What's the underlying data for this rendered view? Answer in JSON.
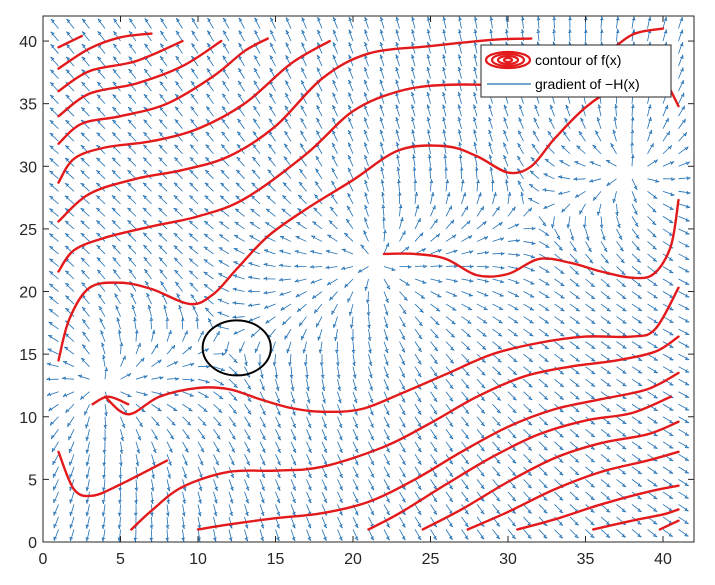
{
  "chart_data": {
    "type": "line",
    "title": "",
    "xlabel": "",
    "ylabel": "",
    "xlim": [
      0,
      42
    ],
    "ylim": [
      0,
      42
    ],
    "xticks": [
      0,
      5,
      10,
      15,
      20,
      25,
      30,
      35,
      40
    ],
    "yticks": [
      0,
      5,
      10,
      15,
      20,
      25,
      30,
      35,
      40
    ],
    "grid": false,
    "legend_location": "top-right",
    "colors": {
      "contour": "#e31a1c",
      "gradient": "#1f6fb4",
      "circle": "#000000",
      "axes": "#262626"
    },
    "series": [
      {
        "name": "contour of  f(x)",
        "kind": "contour",
        "lines": [
          [
            [
              1,
              7.2
            ],
            [
              2,
              4.2
            ],
            [
              3.2,
              3.7
            ],
            [
              5,
              4.6
            ],
            [
              8,
              6.5
            ]
          ],
          [
            [
              5.7,
              1
            ],
            [
              7,
              2.5
            ],
            [
              9,
              4.4
            ],
            [
              12,
              5.6
            ],
            [
              15,
              5.7
            ],
            [
              18,
              6
            ],
            [
              22,
              7.6
            ],
            [
              25,
              9.5
            ],
            [
              28,
              11.6
            ],
            [
              31,
              13.2
            ],
            [
              34,
              14
            ],
            [
              37,
              14.5
            ],
            [
              39.5,
              15.2
            ],
            [
              41,
              16.4
            ]
          ],
          [
            [
              1,
              14.5
            ],
            [
              1.7,
              17.8
            ],
            [
              3,
              20.3
            ],
            [
              5,
              20.7
            ],
            [
              7,
              20.2
            ],
            [
              9.5,
              19
            ],
            [
              11,
              19.8
            ],
            [
              12.5,
              21.8
            ],
            [
              14.5,
              24.4
            ],
            [
              17,
              26.6
            ],
            [
              20,
              28.9
            ],
            [
              23,
              31.3
            ],
            [
              26,
              31.6
            ],
            [
              28,
              30.8
            ],
            [
              30,
              29.5
            ],
            [
              31.5,
              30
            ],
            [
              33,
              32.2
            ],
            [
              35,
              34.7
            ],
            [
              37,
              36.3
            ],
            [
              39,
              37
            ],
            [
              40,
              37
            ],
            [
              41,
              34.8
            ]
          ],
          [
            [
              1,
              21.6
            ],
            [
              2,
              23.3
            ],
            [
              4,
              24.3
            ],
            [
              7,
              25.2
            ],
            [
              10,
              26
            ],
            [
              13,
              27.4
            ],
            [
              17,
              31
            ],
            [
              20,
              34.4
            ],
            [
              23,
              36
            ],
            [
              26,
              36.5
            ],
            [
              30,
              36.4
            ],
            [
              32,
              35.8
            ],
            [
              34,
              36.8
            ],
            [
              36,
              38.6
            ],
            [
              38,
              40.5
            ],
            [
              40,
              41
            ]
          ],
          [
            [
              1,
              25.6
            ],
            [
              3,
              27.8
            ],
            [
              6,
              29
            ],
            [
              9,
              29.7
            ],
            [
              12,
              30.8
            ],
            [
              15,
              33.2
            ],
            [
              18,
              37
            ],
            [
              21,
              39
            ],
            [
              25,
              39.6
            ],
            [
              29,
              40.1
            ],
            [
              31.5,
              40.2
            ]
          ],
          [
            [
              1,
              28.7
            ],
            [
              2,
              30.6
            ],
            [
              4,
              31.5
            ],
            [
              7,
              32
            ],
            [
              10,
              33
            ],
            [
              13,
              35
            ],
            [
              16,
              38.2
            ],
            [
              18.5,
              40
            ]
          ],
          [
            [
              1,
              31.8
            ],
            [
              2.5,
              33.4
            ],
            [
              5,
              34
            ],
            [
              8,
              35
            ],
            [
              11,
              37.2
            ],
            [
              13,
              39.2
            ],
            [
              14.5,
              40.2
            ]
          ],
          [
            [
              1,
              34
            ],
            [
              3,
              35.8
            ],
            [
              6,
              36.6
            ],
            [
              9,
              38
            ],
            [
              11.5,
              40
            ]
          ],
          [
            [
              1,
              36
            ],
            [
              3,
              37.6
            ],
            [
              6,
              38.4
            ],
            [
              9,
              40
            ]
          ],
          [
            [
              1,
              37.8
            ],
            [
              3,
              39.4
            ],
            [
              5,
              40.3
            ],
            [
              7,
              40.6
            ]
          ],
          [
            [
              1,
              39.5
            ],
            [
              2.5,
              40.4
            ]
          ],
          [
            [
              4,
              11.6
            ],
            [
              5.5,
              10.2
            ],
            [
              7.5,
              11.6
            ],
            [
              10,
              12.3
            ],
            [
              12,
              12.2
            ],
            [
              14,
              11.4
            ],
            [
              16,
              10.7
            ],
            [
              18,
              10.4
            ],
            [
              20.5,
              10.6
            ],
            [
              23,
              11.8
            ],
            [
              26,
              13.4
            ],
            [
              29,
              15
            ],
            [
              32,
              15.9
            ],
            [
              35,
              16.4
            ],
            [
              38,
              16.4
            ],
            [
              39.5,
              17
            ],
            [
              41,
              20.3
            ]
          ],
          [
            [
              3.2,
              11
            ],
            [
              4.2,
              11.6
            ],
            [
              5.5,
              11
            ]
          ],
          [
            [
              10,
              1
            ],
            [
              12,
              1.4
            ],
            [
              15,
              1.9
            ],
            [
              18,
              2.3
            ],
            [
              21,
              3.2
            ],
            [
              24,
              5
            ],
            [
              27,
              7.2
            ],
            [
              30,
              9.2
            ],
            [
              33,
              10.6
            ],
            [
              36,
              11.4
            ],
            [
              39,
              12.2
            ],
            [
              41,
              13.5
            ]
          ],
          [
            [
              21,
              1
            ],
            [
              23,
              2.3
            ],
            [
              26,
              4.6
            ],
            [
              29,
              6.8
            ],
            [
              32,
              8.6
            ],
            [
              35,
              9.7
            ],
            [
              38,
              10.3
            ],
            [
              40.5,
              11.6
            ]
          ],
          [
            [
              24.5,
              1
            ],
            [
              27,
              2.6
            ],
            [
              30,
              4.8
            ],
            [
              33,
              6.7
            ],
            [
              36,
              7.9
            ],
            [
              39,
              8.6
            ],
            [
              41,
              9.6
            ]
          ],
          [
            [
              27.4,
              1
            ],
            [
              30,
              2.4
            ],
            [
              33,
              4.2
            ],
            [
              36,
              5.6
            ],
            [
              39,
              6.5
            ],
            [
              41,
              7.2
            ]
          ],
          [
            [
              30.6,
              1
            ],
            [
              33,
              1.8
            ],
            [
              36,
              3
            ],
            [
              39,
              4
            ],
            [
              41,
              4.5
            ]
          ],
          [
            [
              35.5,
              1
            ],
            [
              38,
              1.7
            ],
            [
              40,
              2.2
            ],
            [
              41,
              2.6
            ]
          ],
          [
            [
              39.8,
              1
            ],
            [
              41,
              1.7
            ]
          ],
          [
            [
              22,
              23
            ],
            [
              24,
              23
            ],
            [
              26,
              22.6
            ],
            [
              28,
              21.3
            ],
            [
              30,
              21.4
            ],
            [
              32,
              22.6
            ],
            [
              34,
              22.3
            ],
            [
              36,
              21.6
            ],
            [
              38,
              21.1
            ],
            [
              39.4,
              21.4
            ],
            [
              40.5,
              23.6
            ],
            [
              41,
              27.3
            ]
          ]
        ]
      },
      {
        "name": "gradient of −H(x)",
        "kind": "quiver",
        "grid_spacing": 1,
        "sources": [
          [
            3.6,
            12.5
          ],
          [
            21.5,
            22.3
          ],
          [
            38.2,
            29.7
          ]
        ]
      }
    ],
    "annotations": [
      {
        "type": "circle",
        "center": [
          12.5,
          15.5
        ],
        "radius": 2.2
      }
    ]
  }
}
